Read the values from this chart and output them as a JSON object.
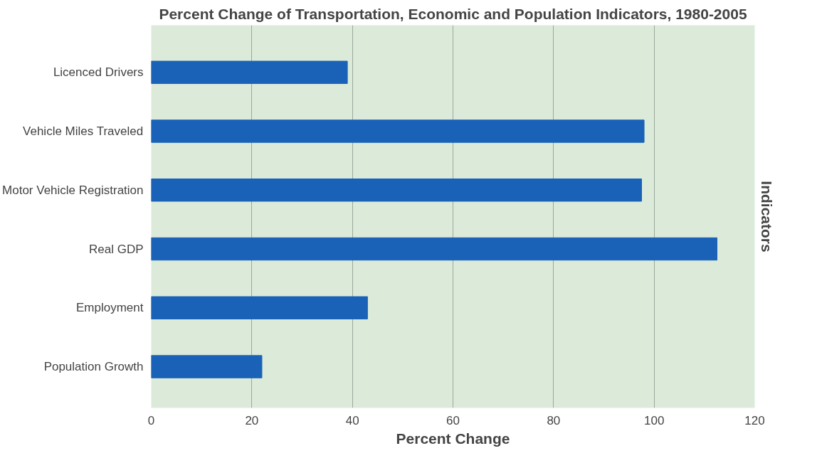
{
  "chart_data": {
    "type": "bar",
    "orientation": "horizontal",
    "title": "Percent Change of Transportation, Economic and Population Indicators, 1980-2005",
    "categories": [
      "Licenced Drivers",
      "Vehicle Miles Traveled",
      "Motor Vehicle Registration",
      "Real GDP",
      "Employment",
      "Population Growth"
    ],
    "values": [
      39,
      98,
      97.5,
      112.5,
      43,
      22
    ],
    "color": "#1a62b8",
    "xlim": [
      0,
      120
    ],
    "xticks": [
      0,
      20,
      40,
      60,
      80,
      100,
      120
    ],
    "xlabel": "Percent Change",
    "ylabel": "Indicators",
    "grid": "x"
  }
}
